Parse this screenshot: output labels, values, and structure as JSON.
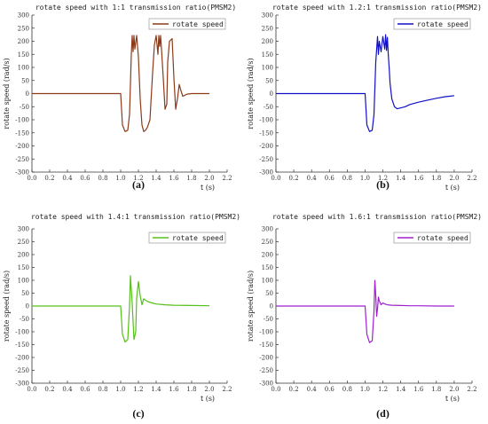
{
  "chart_data": [
    {
      "type": "line",
      "title": "rotate speed with 1:1 transmission ratio(PMSM2)",
      "xlabel": "t (s)",
      "ylabel": "rotate speed (rad/s)",
      "xlim": [
        0.0,
        2.2
      ],
      "ylim": [
        -300,
        300
      ],
      "x_ticks": [
        "0.0",
        "0.2",
        "0.4",
        "0.6",
        "0.8",
        "1.0",
        "1.2",
        "1.4",
        "1.6",
        "1.8",
        "2.0",
        "2.2"
      ],
      "y_ticks": [
        "-300",
        "-250",
        "-200",
        "-150",
        "-100",
        "-50",
        "0",
        "50",
        "100",
        "150",
        "200",
        "250",
        "300"
      ],
      "legend": "top-right",
      "panel_label": "(a)",
      "series": [
        {
          "name": "rotate speed",
          "color": "#8b3a1a",
          "x": [
            0.0,
            1.0,
            1.02,
            1.05,
            1.08,
            1.1,
            1.12,
            1.13,
            1.14,
            1.15,
            1.16,
            1.18,
            1.2,
            1.22,
            1.24,
            1.26,
            1.28,
            1.3,
            1.33,
            1.36,
            1.38,
            1.4,
            1.42,
            1.43,
            1.44,
            1.45,
            1.46,
            1.48,
            1.5,
            1.52,
            1.53,
            1.55,
            1.58,
            1.6,
            1.62,
            1.64,
            1.66,
            1.68,
            1.7,
            1.75,
            1.8,
            2.0
          ],
          "y": [
            0,
            0,
            -120,
            -145,
            -140,
            -80,
            150,
            222,
            160,
            222,
            170,
            222,
            140,
            -20,
            -120,
            -145,
            -140,
            -130,
            -100,
            80,
            185,
            222,
            150,
            222,
            180,
            222,
            170,
            60,
            -60,
            -40,
            120,
            200,
            210,
            60,
            -60,
            -20,
            35,
            10,
            -10,
            -2,
            0,
            0
          ]
        }
      ]
    },
    {
      "type": "line",
      "title": "rotate speed with 1.2:1 transmission ratio(PMSM2)",
      "xlabel": "t (s)",
      "ylabel": "rotate speed (rad/s)",
      "xlim": [
        0.0,
        2.2
      ],
      "ylim": [
        -300,
        300
      ],
      "x_ticks": [
        "0.0",
        "0.2",
        "0.4",
        "0.6",
        "0.8",
        "1.0",
        "1.2",
        "1.4",
        "1.6",
        "1.8",
        "2.0",
        "2.2"
      ],
      "y_ticks": [
        "-300",
        "-250",
        "-200",
        "-150",
        "-100",
        "-50",
        "0",
        "50",
        "100",
        "150",
        "200",
        "250",
        "300"
      ],
      "legend": "top-right",
      "panel_label": "(b)",
      "series": [
        {
          "name": "rotate speed",
          "color": "#1010c8",
          "x": [
            0.0,
            1.0,
            1.02,
            1.05,
            1.08,
            1.1,
            1.12,
            1.14,
            1.15,
            1.16,
            1.18,
            1.2,
            1.22,
            1.23,
            1.24,
            1.25,
            1.26,
            1.27,
            1.28,
            1.3,
            1.33,
            1.36,
            1.4,
            1.45,
            1.5,
            1.6,
            1.7,
            1.8,
            1.9,
            2.0
          ],
          "y": [
            0,
            0,
            -120,
            -145,
            -140,
            -80,
            120,
            218,
            150,
            200,
            160,
            218,
            170,
            225,
            165,
            215,
            150,
            100,
            40,
            -20,
            -50,
            -58,
            -55,
            -50,
            -42,
            -33,
            -25,
            -18,
            -12,
            -8
          ]
        }
      ]
    },
    {
      "type": "line",
      "title": "rotate speed with 1.4:1 transmission ratio(PMSM2)",
      "xlabel": "t (s)",
      "ylabel": "rotate speed (rad/s)",
      "xlim": [
        0.0,
        2.2
      ],
      "ylim": [
        -300,
        300
      ],
      "x_ticks": [
        "0.0",
        "0.2",
        "0.4",
        "0.6",
        "0.8",
        "1.0",
        "1.2",
        "1.4",
        "1.6",
        "1.8",
        "2.0",
        "2.2"
      ],
      "y_ticks": [
        "-300",
        "-250",
        "-200",
        "-150",
        "-100",
        "-50",
        "0",
        "50",
        "100",
        "150",
        "200",
        "250",
        "300"
      ],
      "legend": "top-right",
      "panel_label": "(c)",
      "series": [
        {
          "name": "rotate speed",
          "color": "#55c01a",
          "x": [
            0.0,
            1.0,
            1.02,
            1.05,
            1.08,
            1.1,
            1.11,
            1.13,
            1.15,
            1.17,
            1.18,
            1.2,
            1.22,
            1.24,
            1.26,
            1.3,
            1.35,
            1.4,
            1.5,
            1.6,
            1.8,
            2.0
          ],
          "y": [
            0,
            0,
            -110,
            -140,
            -130,
            0,
            118,
            10,
            -130,
            -100,
            30,
            95,
            40,
            5,
            28,
            18,
            12,
            8,
            5,
            3,
            2,
            1
          ]
        }
      ]
    },
    {
      "type": "line",
      "title": "rotate speed with 1.6:1 transmission ratio(PMSM2)",
      "xlabel": "t (s)",
      "ylabel": "rotate speed (rad/s)",
      "xlim": [
        0.0,
        2.2
      ],
      "ylim": [
        -300,
        300
      ],
      "x_ticks": [
        "0.0",
        "0.2",
        "0.4",
        "0.6",
        "0.8",
        "1.0",
        "1.2",
        "1.4",
        "1.6",
        "1.8",
        "2.0",
        "2.2"
      ],
      "y_ticks": [
        "-300",
        "-250",
        "-200",
        "-150",
        "-100",
        "-50",
        "0",
        "50",
        "100",
        "150",
        "200",
        "250",
        "300"
      ],
      "legend": "top-right",
      "panel_label": "(d)",
      "series": [
        {
          "name": "rotate speed",
          "color": "#a020d0",
          "x": [
            0.0,
            1.0,
            1.02,
            1.05,
            1.08,
            1.1,
            1.11,
            1.12,
            1.13,
            1.14,
            1.15,
            1.16,
            1.18,
            1.2,
            1.22,
            1.25,
            1.3,
            1.4,
            1.5,
            1.6,
            1.8,
            2.0
          ],
          "y": [
            0,
            0,
            -110,
            -142,
            -135,
            -20,
            100,
            40,
            -40,
            -10,
            35,
            20,
            5,
            12,
            8,
            5,
            3,
            2,
            1,
            1,
            0,
            0
          ]
        }
      ]
    }
  ]
}
